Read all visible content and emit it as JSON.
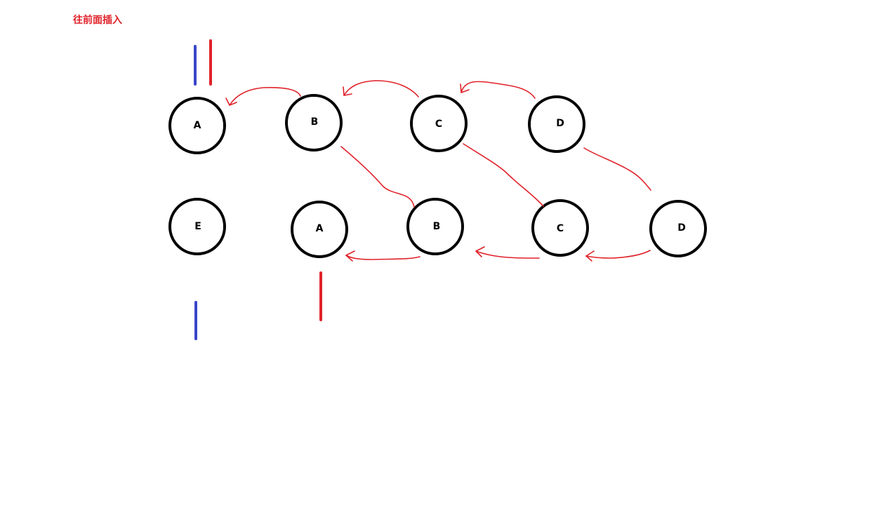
{
  "title": "往前面插入",
  "colors": {
    "title": "#e0222a",
    "node_stroke": "#000000",
    "arrow": "#e0222a",
    "marker_red": "#e0222a",
    "marker_blue": "#3a45c8",
    "background": "#ffffff"
  },
  "top_row": {
    "nodes": [
      {
        "label": "A"
      },
      {
        "label": "B"
      },
      {
        "label": "C"
      },
      {
        "label": "D"
      }
    ]
  },
  "bottom_row": {
    "nodes": [
      {
        "label": "E"
      },
      {
        "label": "A"
      },
      {
        "label": "B"
      },
      {
        "label": "C"
      },
      {
        "label": "D"
      }
    ]
  }
}
